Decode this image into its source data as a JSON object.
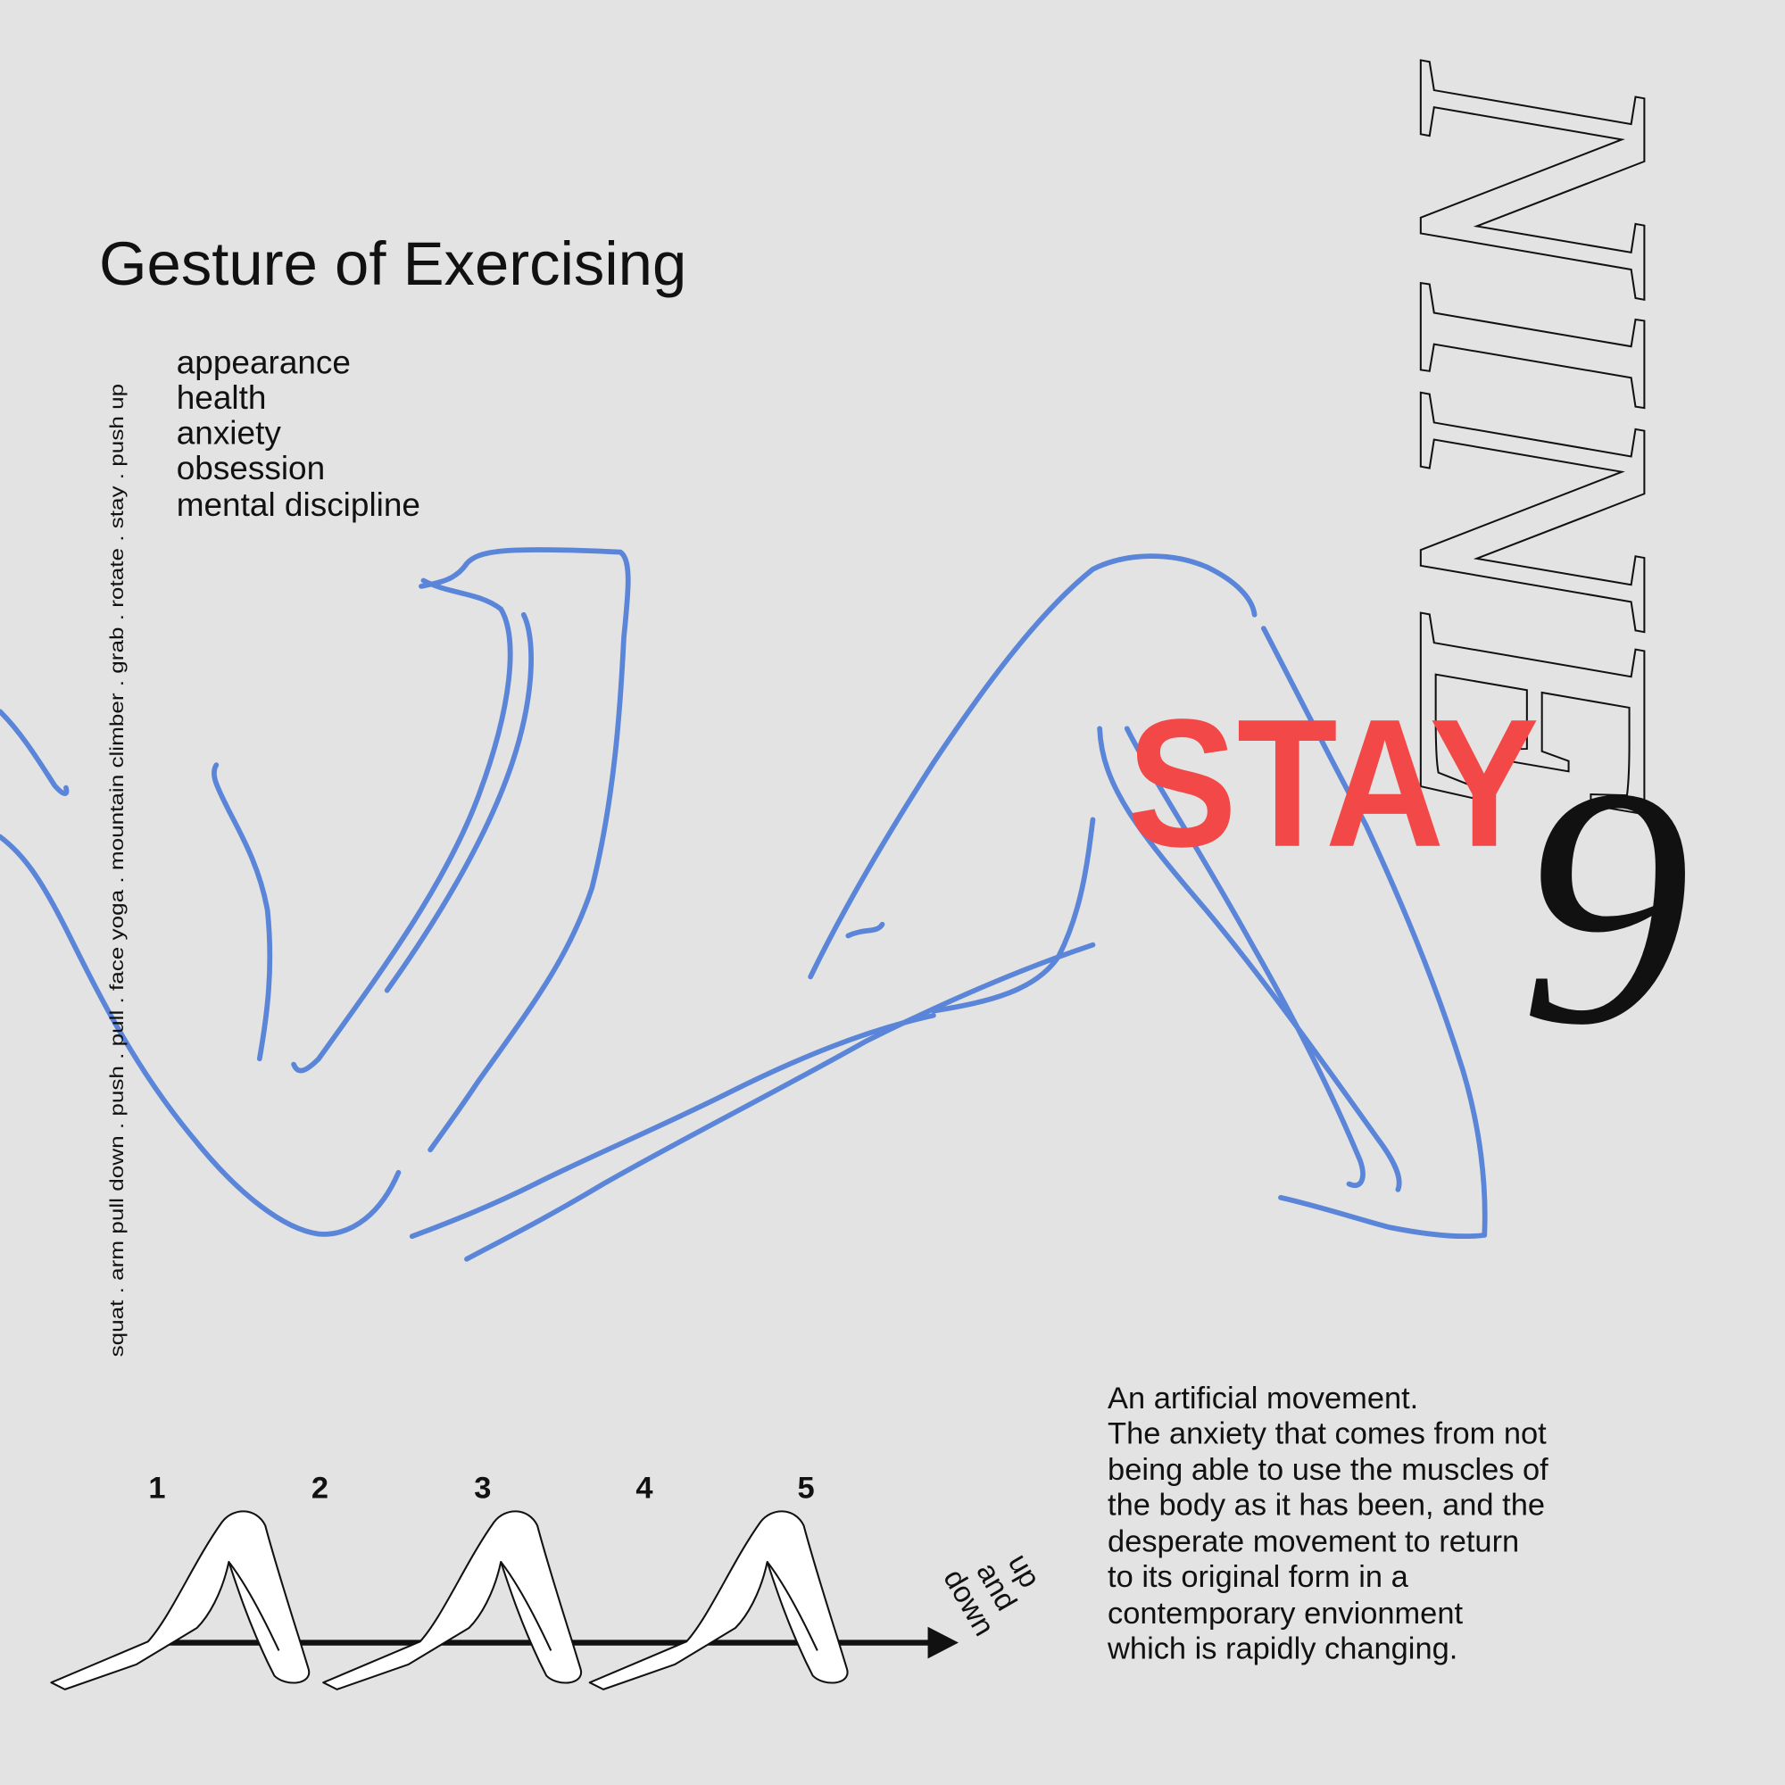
{
  "title": "Gesture of Exercising",
  "keywords": [
    "appearance",
    "health",
    "anxiety",
    "obsession",
    "mental discipline"
  ],
  "exercises": "squat . arm pull down . push . pull . face yoga . mountain climber . grab . rotate . stay . push up",
  "steps": [
    "1",
    "2",
    "3",
    "4",
    "5"
  ],
  "direction": [
    "up",
    "and",
    "down"
  ],
  "description": [
    "An artificial movement.",
    "The anxiety that comes from not",
    "being able to use the muscles of",
    "the body as it has been, and the",
    "desperate movement to return",
    "to its original form in a",
    "contemporary envionment",
    "which is rapidly changing."
  ],
  "word": "NINE",
  "overlay": "STAY",
  "number": "9"
}
